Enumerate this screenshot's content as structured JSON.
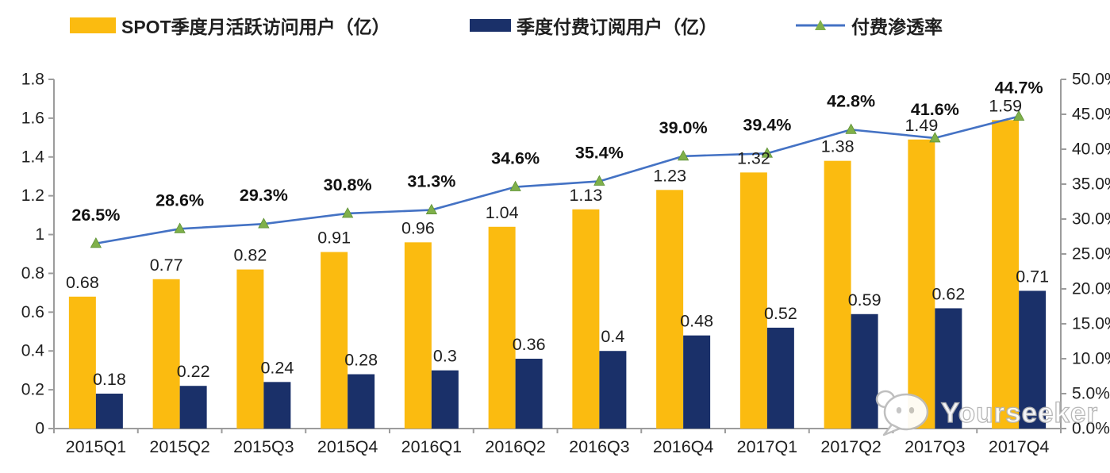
{
  "legend": [
    {
      "label": "SPOT季度月活跃访问用户（亿）",
      "swatch": "bar",
      "color": "#FBBB10"
    },
    {
      "label": "季度付费订阅用户（亿）",
      "swatch": "bar",
      "color": "#1A3069"
    },
    {
      "label": "付费渗透率",
      "swatch": "line",
      "color": "#4472C4",
      "marker_color": "#7FB04A"
    }
  ],
  "chart_data": {
    "type": "bar",
    "subtype": "clustered-bars-with-line",
    "categories": [
      "2015Q1",
      "2015Q2",
      "2015Q3",
      "2015Q4",
      "2016Q1",
      "2016Q2",
      "2016Q3",
      "2016Q4",
      "2017Q1",
      "2017Q2",
      "2017Q3",
      "2017Q4"
    ],
    "series": [
      {
        "name": "SPOT季度月活跃访问用户（亿）",
        "type": "bar",
        "axis": "left",
        "color": "#FBBB10",
        "values": [
          0.68,
          0.77,
          0.82,
          0.91,
          0.96,
          1.04,
          1.13,
          1.23,
          1.32,
          1.38,
          1.49,
          1.59
        ],
        "labels": [
          "0.68",
          "0.77",
          "0.82",
          "0.91",
          "0.96",
          "1.04",
          "1.13",
          "1.23",
          "1.32",
          "1.38",
          "1.49",
          "1.59"
        ]
      },
      {
        "name": "季度付费订阅用户（亿）",
        "type": "bar",
        "axis": "left",
        "color": "#1A3069",
        "values": [
          0.18,
          0.22,
          0.24,
          0.28,
          0.3,
          0.36,
          0.4,
          0.48,
          0.52,
          0.59,
          0.62,
          0.71
        ],
        "labels": [
          "0.18",
          "0.22",
          "0.24",
          "0.28",
          "0.3",
          "0.36",
          "0.4",
          "0.48",
          "0.52",
          "0.59",
          "0.62",
          "0.71"
        ]
      },
      {
        "name": "付费渗透率",
        "type": "line",
        "axis": "right",
        "color": "#4472C4",
        "marker": "triangle",
        "marker_color": "#7FB04A",
        "values": [
          26.5,
          28.6,
          29.3,
          30.8,
          31.3,
          34.6,
          35.4,
          39.0,
          39.4,
          42.8,
          41.6,
          44.7
        ],
        "labels": [
          "26.5%",
          "28.6%",
          "29.3%",
          "30.8%",
          "31.3%",
          "34.6%",
          "35.4%",
          "39.0%",
          "39.4%",
          "42.8%",
          "41.6%",
          "44.7%"
        ]
      }
    ],
    "left_axis": {
      "min": 0,
      "max": 1.8,
      "ticks": [
        "1.8",
        "1.6",
        "1.4",
        "1.2",
        "1",
        "0.8",
        "0.6",
        "0.4",
        "0.2",
        "0"
      ]
    },
    "right_axis": {
      "min": 0,
      "max": 50,
      "ticks": [
        "50.0%",
        "45.0%",
        "40.0%",
        "35.0%",
        "30.0%",
        "25.0%",
        "20.0%",
        "15.0%",
        "10.0%",
        "5.0%",
        "0.0%"
      ]
    },
    "grid": false,
    "legend_position": "top",
    "title": ""
  },
  "watermark": {
    "text": "Yourseeker",
    "icon": "chat-bubble-icon"
  },
  "colors": {
    "mau_bar": "#FBBB10",
    "paid_bar": "#1A3069",
    "line": "#4472C4",
    "marker": "#7FB04A",
    "marker_edge": "#5E9136",
    "axis": "#9C9C9C",
    "text": "#1F1F1F",
    "watermark_outline": "#B5B5B5"
  }
}
